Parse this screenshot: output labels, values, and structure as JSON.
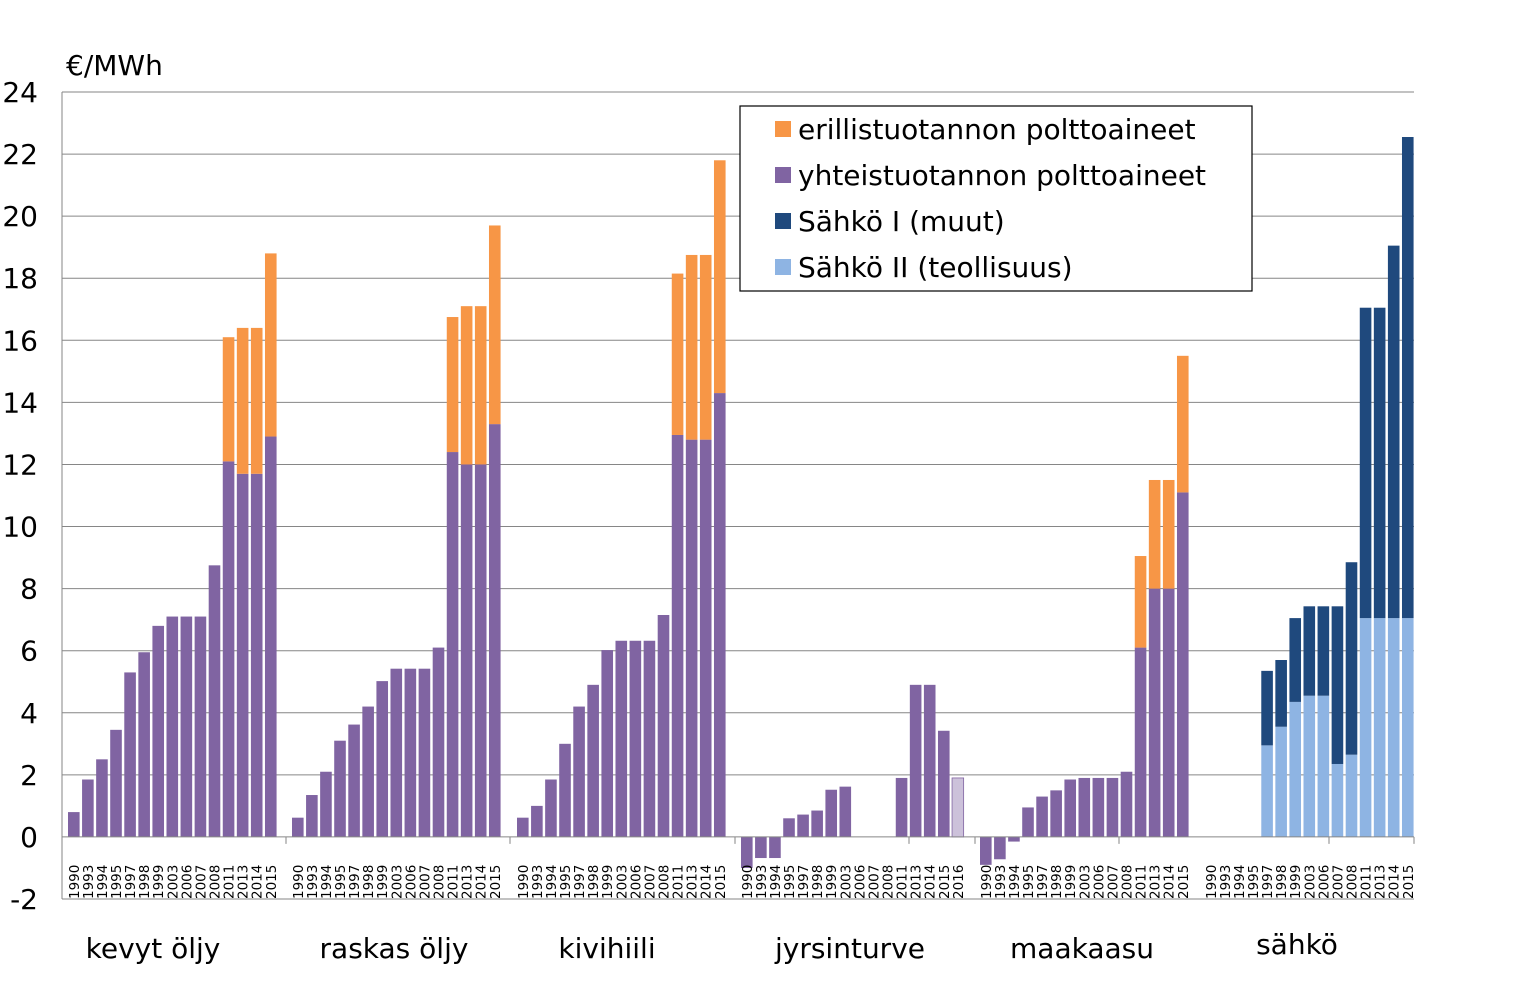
{
  "chart_data": {
    "type": "bar",
    "stacked": true,
    "y_unit_label": "€/MWh",
    "ylim": [
      -2,
      24
    ],
    "y_ticks": [
      -2,
      0,
      2,
      4,
      6,
      8,
      10,
      12,
      14,
      16,
      18,
      20,
      22,
      24
    ],
    "grid": true,
    "legend_position": "top-right",
    "legend": [
      {
        "key": "erill",
        "name": "erillistuotannon polttoaineet",
        "color": "#F79646"
      },
      {
        "key": "yht",
        "name": "yhteistuotannon polttoaineet",
        "color": "#8064A2"
      },
      {
        "key": "s1",
        "name": "Sähkö I (muut)",
        "color": "#1F497D"
      },
      {
        "key": "s2",
        "name": "Sähkö II (teollisuus)",
        "color": "#8EB4E3"
      }
    ],
    "groups": [
      {
        "label": "kevyt öljy",
        "bars": [
          {
            "year": "1990",
            "yht": 0.8
          },
          {
            "year": "1993",
            "yht": 1.85
          },
          {
            "year": "1994",
            "yht": 2.5
          },
          {
            "year": "1995",
            "yht": 3.45
          },
          {
            "year": "1997",
            "yht": 5.3
          },
          {
            "year": "1998",
            "yht": 5.95
          },
          {
            "year": "1999",
            "yht": 6.8
          },
          {
            "year": "2003",
            "yht": 7.1
          },
          {
            "year": "2006",
            "yht": 7.1
          },
          {
            "year": "2007",
            "yht": 7.1
          },
          {
            "year": "2008",
            "yht": 8.75
          },
          {
            "year": "2011",
            "yht": 12.1,
            "erill": 4.0
          },
          {
            "year": "2013",
            "yht": 11.7,
            "erill": 4.7
          },
          {
            "year": "2014",
            "yht": 11.7,
            "erill": 4.7
          },
          {
            "year": "2015",
            "yht": 12.9,
            "erill": 5.9
          }
        ]
      },
      {
        "label": "raskas öljy",
        "bars": [
          {
            "year": "1990",
            "yht": 0.62
          },
          {
            "year": "1993",
            "yht": 1.35
          },
          {
            "year": "1994",
            "yht": 2.1
          },
          {
            "year": "1995",
            "yht": 3.1
          },
          {
            "year": "1997",
            "yht": 3.62
          },
          {
            "year": "1998",
            "yht": 4.2
          },
          {
            "year": "1999",
            "yht": 5.02
          },
          {
            "year": "2003",
            "yht": 5.42
          },
          {
            "year": "2006",
            "yht": 5.42
          },
          {
            "year": "2007",
            "yht": 5.42
          },
          {
            "year": "2008",
            "yht": 6.1
          },
          {
            "year": "2011",
            "yht": 12.4,
            "erill": 4.35
          },
          {
            "year": "2013",
            "yht": 12.0,
            "erill": 5.1
          },
          {
            "year": "2014",
            "yht": 12.0,
            "erill": 5.1
          },
          {
            "year": "2015",
            "yht": 13.3,
            "erill": 6.4
          }
        ]
      },
      {
        "label": "kivihiili",
        "bars": [
          {
            "year": "1990",
            "yht": 0.62
          },
          {
            "year": "1993",
            "yht": 1.0
          },
          {
            "year": "1994",
            "yht": 1.85
          },
          {
            "year": "1995",
            "yht": 3.0
          },
          {
            "year": "1997",
            "yht": 4.2
          },
          {
            "year": "1998",
            "yht": 4.9
          },
          {
            "year": "1999",
            "yht": 6.02
          },
          {
            "year": "2003",
            "yht": 6.32
          },
          {
            "year": "2006",
            "yht": 6.32
          },
          {
            "year": "2007",
            "yht": 6.32
          },
          {
            "year": "2008",
            "yht": 7.15
          },
          {
            "year": "2011",
            "yht": 12.95,
            "erill": 5.2
          },
          {
            "year": "2013",
            "yht": 12.8,
            "erill": 5.95
          },
          {
            "year": "2014",
            "yht": 12.8,
            "erill": 5.95
          },
          {
            "year": "2015",
            "yht": 14.3,
            "erill": 7.5
          }
        ]
      },
      {
        "label": "jyrsinturve",
        "bars": [
          {
            "year": "1990",
            "yht": -1.0
          },
          {
            "year": "1993",
            "yht": -0.68
          },
          {
            "year": "1994",
            "yht": -0.68
          },
          {
            "year": "1995",
            "yht": 0.6
          },
          {
            "year": "1997",
            "yht": 0.72
          },
          {
            "year": "1998",
            "yht": 0.85
          },
          {
            "year": "1999",
            "yht": 1.52
          },
          {
            "year": "2003",
            "yht": 1.62
          },
          {
            "year": "2006",
            "yht": 0
          },
          {
            "year": "2007",
            "yht": 0
          },
          {
            "year": "2008",
            "yht": 0
          },
          {
            "year": "2011",
            "yht": 1.9
          },
          {
            "year": "2013",
            "yht": 4.9
          },
          {
            "year": "2014",
            "yht": 4.9
          },
          {
            "year": "2015",
            "yht": 3.42
          },
          {
            "year": "2016",
            "yht_light": 1.9
          }
        ]
      },
      {
        "label": "maakaasu",
        "bars": [
          {
            "year": "1990",
            "yht": -0.9
          },
          {
            "year": "1993",
            "yht": -0.72
          },
          {
            "year": "1994",
            "yht": -0.15
          },
          {
            "year": "1995",
            "yht": 0.95
          },
          {
            "year": "1997",
            "yht": 1.3
          },
          {
            "year": "1998",
            "yht": 1.5
          },
          {
            "year": "1999",
            "yht": 1.85
          },
          {
            "year": "2003",
            "yht": 1.9
          },
          {
            "year": "2006",
            "yht": 1.9
          },
          {
            "year": "2007",
            "yht": 1.9
          },
          {
            "year": "2008",
            "yht": 2.1
          },
          {
            "year": "2011",
            "yht": 6.1,
            "erill": 2.95
          },
          {
            "year": "2013",
            "yht": 8.0,
            "erill": 3.5
          },
          {
            "year": "2014",
            "yht": 8.0,
            "erill": 3.5
          },
          {
            "year": "2015",
            "yht": 11.1,
            "erill": 4.4
          }
        ]
      },
      {
        "label": "sähkö",
        "bars": [
          {
            "year": "1990"
          },
          {
            "year": "1993"
          },
          {
            "year": "1994"
          },
          {
            "year": "1995"
          },
          {
            "year": "1997",
            "s2": 2.95,
            "s1": 2.4
          },
          {
            "year": "1998",
            "s2": 3.55,
            "s1": 2.15
          },
          {
            "year": "1999",
            "s2": 4.35,
            "s1": 2.7
          },
          {
            "year": "2003",
            "s2": 4.55,
            "s1": 2.88
          },
          {
            "year": "2006",
            "s2": 4.55,
            "s1": 2.88
          },
          {
            "year": "2007",
            "s2": 2.35,
            "s1": 5.08
          },
          {
            "year": "2008",
            "s2": 2.65,
            "s1": 6.2
          },
          {
            "year": "2011",
            "s2": 7.05,
            "s1": 10.0
          },
          {
            "year": "2013",
            "s2": 7.05,
            "s1": 10.0
          },
          {
            "year": "2014",
            "s2": 7.05,
            "s1": 12.0
          },
          {
            "year": "2015",
            "s2": 7.05,
            "s1": 15.5
          }
        ]
      }
    ]
  }
}
